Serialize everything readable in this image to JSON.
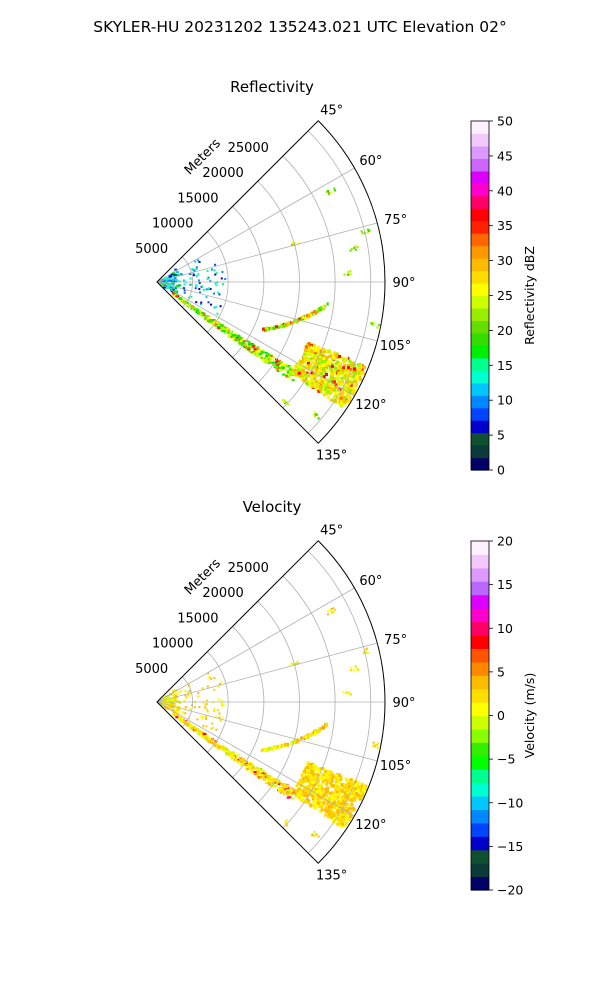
{
  "figure": {
    "suptitle": "SKYLER-HU  20231202  135243.021 UTC Elevation 02°"
  },
  "chart_data": [
    {
      "type": "heatmap",
      "title": "Reflectivity",
      "radial_label": "Meters",
      "theta_range_deg": [
        45,
        135
      ],
      "r_max_m": 32000,
      "grid": true,
      "theta_ticks": [
        "45°",
        "60°",
        "75°",
        "90°",
        "105°",
        "120°",
        "135°"
      ],
      "r_ticks": [
        "5000",
        "10000",
        "15000",
        "20000",
        "25000"
      ],
      "colorbar": {
        "label": "Reflectivity dBZ",
        "vmin": 0,
        "vmax": 50,
        "ticks": [
          "0",
          "5",
          "10",
          "15",
          "20",
          "25",
          "30",
          "35",
          "40",
          "45",
          "50"
        ]
      }
    },
    {
      "type": "heatmap",
      "title": "Velocity",
      "radial_label": "Meters",
      "theta_range_deg": [
        45,
        135
      ],
      "r_max_m": 32000,
      "grid": true,
      "theta_ticks": [
        "45°",
        "60°",
        "75°",
        "90°",
        "105°",
        "120°",
        "135°"
      ],
      "r_ticks": [
        "5000",
        "10000",
        "15000",
        "20000",
        "25000"
      ],
      "colorbar": {
        "label": "Velocity (m/s)",
        "vmin": -20,
        "vmax": 20,
        "ticks": [
          "−20",
          "−15",
          "−10",
          "−5",
          "0",
          "5",
          "10",
          "15",
          "20"
        ]
      }
    }
  ]
}
